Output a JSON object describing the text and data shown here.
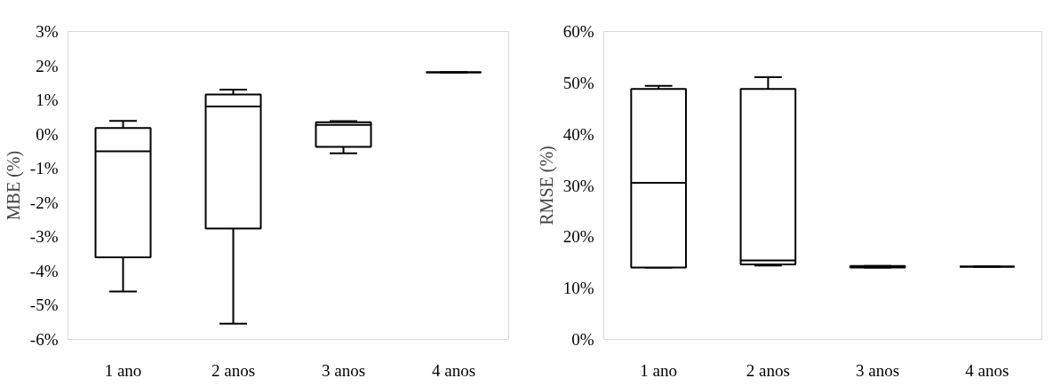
{
  "chart_data": [
    {
      "type": "box",
      "ylabel": "MBE (%)",
      "categories": [
        "1 ano",
        "2 anos",
        "3 anos",
        "4 anos"
      ],
      "boxes": [
        {
          "low": -4.6,
          "q1": -3.6,
          "median": -0.5,
          "q3": 0.18,
          "high": 0.39
        },
        {
          "low": -5.54,
          "q1": -2.76,
          "median": 0.81,
          "q3": 1.16,
          "high": 1.3
        },
        {
          "low": -0.56,
          "q1": -0.37,
          "median": 0.27,
          "q3": 0.35,
          "high": 0.38
        },
        {
          "low": 1.81,
          "q1": 1.81,
          "median": 1.81,
          "q3": 1.81,
          "high": 1.81
        }
      ],
      "ylim": [
        -6,
        3
      ],
      "yticks": [
        {
          "value": -6,
          "label": "-6%"
        },
        {
          "value": -5,
          "label": "-5%"
        },
        {
          "value": -4,
          "label": "-4%"
        },
        {
          "value": -3,
          "label": "-3%"
        },
        {
          "value": -2,
          "label": "-2%"
        },
        {
          "value": -1,
          "label": "-1%"
        },
        {
          "value": 0,
          "label": "0%"
        },
        {
          "value": 1,
          "label": "1%"
        },
        {
          "value": 2,
          "label": "2%"
        },
        {
          "value": 3,
          "label": "3%"
        }
      ],
      "grid": false
    },
    {
      "type": "box",
      "ylabel": "RMSE (%)",
      "categories": [
        "1 ano",
        "2 anos",
        "3 anos",
        "4 anos"
      ],
      "boxes": [
        {
          "low": 14.0,
          "q1": 14.0,
          "median": 30.5,
          "q3": 48.8,
          "high": 49.4
        },
        {
          "low": 14.4,
          "q1": 14.6,
          "median": 15.4,
          "q3": 48.8,
          "high": 51.1
        },
        {
          "low": 14.0,
          "q1": 14.0,
          "median": 14.1,
          "q3": 14.3,
          "high": 14.3
        },
        {
          "low": 14.2,
          "q1": 14.2,
          "median": 14.2,
          "q3": 14.2,
          "high": 14.2
        }
      ],
      "ylim": [
        0,
        60
      ],
      "yticks": [
        {
          "value": 0,
          "label": "0%"
        },
        {
          "value": 10,
          "label": "10%"
        },
        {
          "value": 20,
          "label": "20%"
        },
        {
          "value": 30,
          "label": "30%"
        },
        {
          "value": 40,
          "label": "40%"
        },
        {
          "value": 50,
          "label": "50%"
        },
        {
          "value": 60,
          "label": "60%"
        }
      ],
      "grid": false
    }
  ]
}
